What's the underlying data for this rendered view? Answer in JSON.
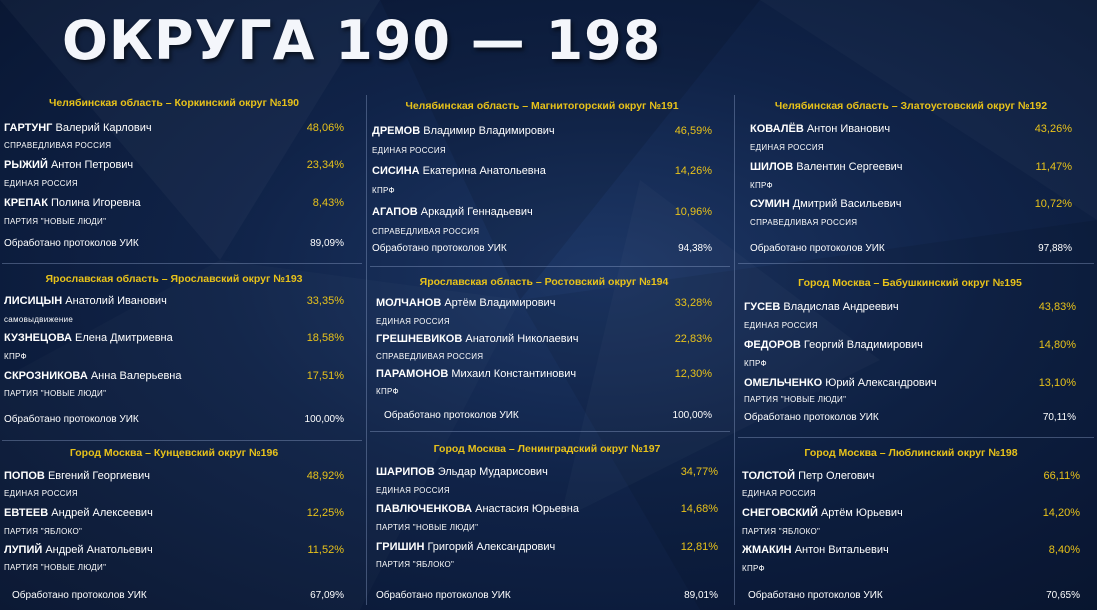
{
  "title": "ОКРУГА 190 — 198",
  "colors": {
    "background": "#102348",
    "accent": "#e8c21a",
    "text": "#ffffff"
  },
  "districts": [
    {
      "header": "Челябинская область – Коркинский округ №190",
      "candidates": [
        {
          "surname": "ГАРТУНГ",
          "rest": "Валерий Карлович",
          "percent": "48,06%",
          "party": "СПРАВЕДЛИВАЯ РОССИЯ"
        },
        {
          "surname": "РЫЖИЙ",
          "rest": "Антон Петрович",
          "percent": "23,34%",
          "party": "ЕДИНАЯ РОССИЯ"
        },
        {
          "surname": "КРЕПАК",
          "rest": "Полина Игоревна",
          "percent": "8,43%",
          "party": "ПАРТИЯ \"НОВЫЕ ЛЮДИ\""
        }
      ],
      "processed_label": "Обработано протоколов УИК",
      "processed": "89,09%"
    },
    {
      "header": "Челябинская область – Магнитогорский округ №191",
      "candidates": [
        {
          "surname": "ДРЕМОВ",
          "rest": "Владимир Владимирович",
          "percent": "46,59%",
          "party": "ЕДИНАЯ РОССИЯ"
        },
        {
          "surname": "СИСИНА",
          "rest": "Екатерина Анатольевна",
          "percent": "14,26%",
          "party": "КПРФ"
        },
        {
          "surname": "АГАПОВ",
          "rest": "Аркадий Геннадьевич",
          "percent": "10,96%",
          "party": "СПРАВЕДЛИВАЯ РОССИЯ"
        }
      ],
      "processed_label": "Обработано протоколов УИК",
      "processed": "94,38%"
    },
    {
      "header": "Челябинская область – Златоустовский округ №192",
      "candidates": [
        {
          "surname": "КОВАЛЁВ",
          "rest": "Антон Иванович",
          "percent": "43,26%",
          "party": "ЕДИНАЯ РОССИЯ"
        },
        {
          "surname": "ШИЛОВ",
          "rest": "Валентин Сергеевич",
          "percent": "11,47%",
          "party": "КПРФ"
        },
        {
          "surname": "СУМИН",
          "rest": "Дмитрий Васильевич",
          "percent": "10,72%",
          "party": "СПРАВЕДЛИВАЯ РОССИЯ"
        }
      ],
      "processed_label": "Обработано протоколов УИК",
      "processed": "97,88%"
    },
    {
      "header": "Ярославская область – Ярославский округ №193",
      "candidates": [
        {
          "surname": "ЛИСИЦЫН",
          "rest": "Анатолий Иванович",
          "percent": "33,35%",
          "party": "самовыдвижение"
        },
        {
          "surname": "КУЗНЕЦОВА",
          "rest": "Елена Дмитриевна",
          "percent": "18,58%",
          "party": "КПРФ"
        },
        {
          "surname": "СКРОЗНИКОВА",
          "rest": "Анна Валерьевна",
          "percent": "17,51%",
          "party": "ПАРТИЯ \"НОВЫЕ ЛЮДИ\""
        }
      ],
      "processed_label": "Обработано протоколов УИК",
      "processed": "100,00%"
    },
    {
      "header": "Ярославская область – Ростовский округ №194",
      "candidates": [
        {
          "surname": "МОЛЧАНОВ",
          "rest": "Артём Владимирович",
          "percent": "33,28%",
          "party": "ЕДИНАЯ РОССИЯ"
        },
        {
          "surname": "ГРЕШНЕВИКОВ",
          "rest": "Анатолий Николаевич",
          "percent": "22,83%",
          "party": "СПРАВЕДЛИВАЯ РОССИЯ"
        },
        {
          "surname": "ПАРАМОНОВ",
          "rest": "Михаил Константинович",
          "percent": "12,30%",
          "party": "КПРФ"
        }
      ],
      "processed_label": "Обработано протоколов УИК",
      "processed": "100,00%"
    },
    {
      "header": "Город Москва – Бабушкинский округ №195",
      "candidates": [
        {
          "surname": "ГУСЕВ",
          "rest": "Владислав Андреевич",
          "percent": "43,83%",
          "party": "ЕДИНАЯ РОССИЯ"
        },
        {
          "surname": "ФЕДОРОВ",
          "rest": "Георгий Владимирович",
          "percent": "14,80%",
          "party": "КПРФ"
        },
        {
          "surname": "ОМЕЛЬЧЕНКО",
          "rest": "Юрий Александрович",
          "percent": "13,10%",
          "party": "ПАРТИЯ \"НОВЫЕ ЛЮДИ\""
        }
      ],
      "processed_label": "Обработано протоколов УИК",
      "processed": "70,11%"
    },
    {
      "header": "Город Москва – Кунцевский округ №196",
      "candidates": [
        {
          "surname": "ПОПОВ",
          "rest": "Евгений Георгиевич",
          "percent": "48,92%",
          "party": "ЕДИНАЯ РОССИЯ"
        },
        {
          "surname": "ЕВТЕЕВ",
          "rest": "Андрей Алексеевич",
          "percent": "12,25%",
          "party": "ПАРТИЯ \"ЯБЛОКО\""
        },
        {
          "surname": "ЛУПИЙ",
          "rest": "Андрей Анатольевич",
          "percent": "11,52%",
          "party": "ПАРТИЯ \"НОВЫЕ ЛЮДИ\""
        }
      ],
      "processed_label": "Обработано протоколов УИК",
      "processed": "67,09%"
    },
    {
      "header": "Город Москва – Ленинградский округ №197",
      "candidates": [
        {
          "surname": "ШАРИПОВ",
          "rest": "Эльдар Мударисович",
          "percent": "34,77%",
          "party": "ЕДИНАЯ РОССИЯ"
        },
        {
          "surname": "ПАВЛЮЧЕНКОВА",
          "rest": "Анастасия Юрьевна",
          "percent": "14,68%",
          "party": "ПАРТИЯ \"НОВЫЕ ЛЮДИ\""
        },
        {
          "surname": "ГРИШИН",
          "rest": "Григорий Александрович",
          "percent": "12,81%",
          "party": "ПАРТИЯ \"ЯБЛОКО\""
        }
      ],
      "processed_label": "Обработано протоколов УИК",
      "processed": "89,01%"
    },
    {
      "header": "Город Москва – Люблинский округ №198",
      "candidates": [
        {
          "surname": "ТОЛСТОЙ",
          "rest": "Петр Олегович",
          "percent": "66,11%",
          "party": "ЕДИНАЯ РОССИЯ"
        },
        {
          "surname": "СНЕГОВСКИЙ",
          "rest": "Артём Юрьевич",
          "percent": "14,20%",
          "party": "ПАРТИЯ \"ЯБЛОКО\""
        },
        {
          "surname": "ЖМАКИН",
          "rest": "Антон Витальевич",
          "percent": "8,40%",
          "party": "КПРФ"
        }
      ],
      "processed_label": "Обработано протоколов УИК",
      "processed": "70,65%"
    }
  ]
}
